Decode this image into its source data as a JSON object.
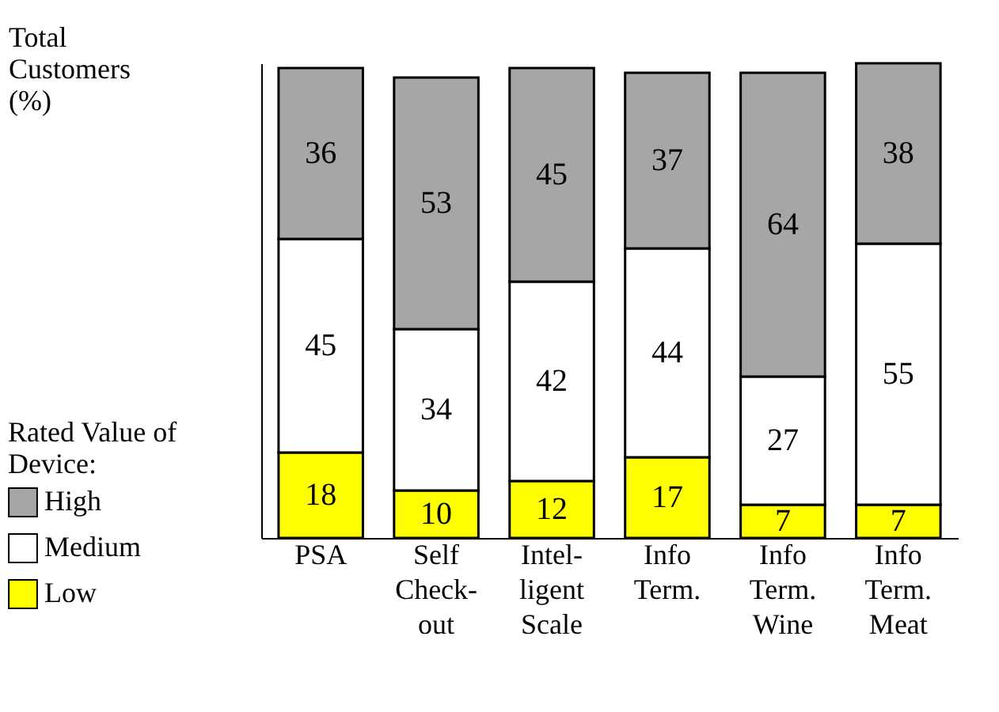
{
  "chart_data": {
    "type": "bar",
    "stacked": true,
    "ylabel": "Total\nCustomers\n(%)",
    "legend_title": "Rated Value of\nDevice:",
    "categories": [
      "PSA",
      "Self\nCheck-\nout",
      "Intel-\nligent\nScale",
      "Info\nTerm.",
      "Info\nTerm.\nWine",
      "Info\nTerm.\nMeat"
    ],
    "series": [
      {
        "name": "Low",
        "color": "#ffff00",
        "values": [
          18,
          10,
          12,
          17,
          7,
          7
        ]
      },
      {
        "name": "Medium",
        "color": "#ffffff",
        "values": [
          45,
          34,
          42,
          44,
          27,
          55
        ]
      },
      {
        "name": "High",
        "color": "#a6a6a6",
        "values": [
          36,
          53,
          45,
          37,
          64,
          38
        ]
      }
    ],
    "ylim": [
      0,
      100
    ],
    "tick_labels": "x",
    "data_labels": true,
    "legend": "bottom left",
    "grid": false
  }
}
